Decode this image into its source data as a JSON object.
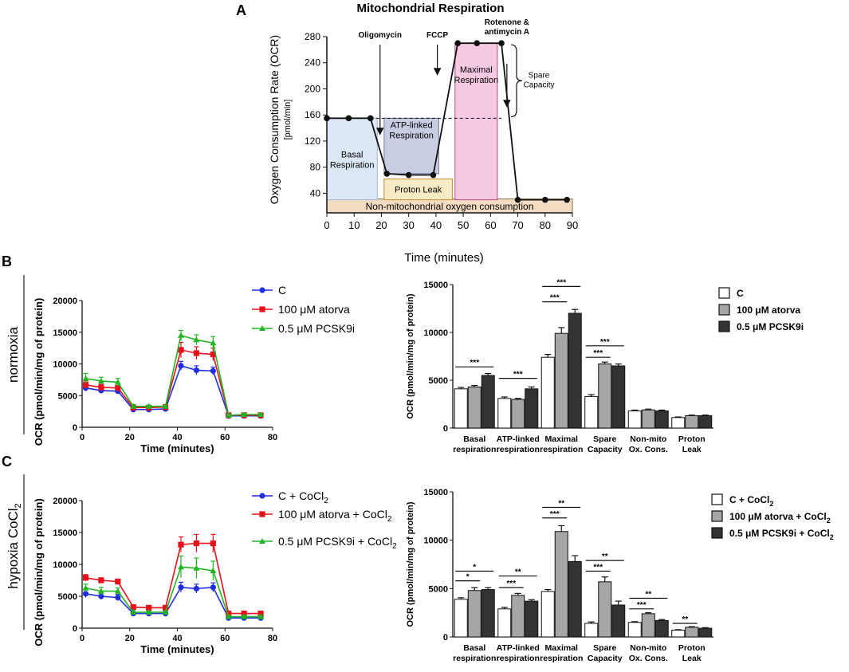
{
  "panel_labels": {
    "A": "A",
    "B": "B",
    "C": "C"
  },
  "row_labels": {
    "B": "normoxia",
    "C_main": "hypoxia CoCl",
    "C_sub": "2"
  },
  "panel_a": {
    "title": "Mitochondrial Respiration",
    "ylabel_line1": "Oxygen Consumption Rate (OCR)",
    "ylabel_line2": "[pmol/min]",
    "xlabel": "Time (minutes)",
    "x_ticks": [
      0,
      10,
      20,
      30,
      40,
      50,
      60,
      70,
      80,
      90
    ],
    "y_ticks": [
      40,
      80,
      120,
      160,
      200,
      240,
      280
    ],
    "xlim": [
      0,
      90
    ],
    "ylim": [
      10,
      280
    ],
    "injections": {
      "oligomycin": "Oligomycin",
      "fccp": "FCCP",
      "rotenone_line1": "Rotenone &",
      "rotenone_line2": "antimycin A"
    },
    "boxes": {
      "basal_line1": "Basal",
      "basal_line2": "Respiration",
      "atp_line1": "ATP-linked",
      "atp_line2": "Respiration",
      "proton_leak": "Proton Leak",
      "maximal_line1": "Maximal",
      "maximal_line2": "Respiration",
      "nonmito": "Non-mitochondrial oxygen consumption",
      "spare_line1": "Spare",
      "spare_line2": "Capacity"
    },
    "trace": {
      "x": [
        0,
        8,
        16,
        22,
        30,
        39,
        48,
        55,
        64,
        70,
        80,
        88
      ],
      "y": [
        155,
        155,
        155,
        70,
        68,
        68,
        270,
        270,
        270,
        30,
        30,
        30
      ]
    },
    "colors": {
      "basal": "#dce8f5",
      "atp": "#c9cde4",
      "proton": "#f7ebc6",
      "maximal": "#f7c9e1",
      "nonmito": "#f2ddc3"
    }
  },
  "legend_line_b": [
    "C",
    "100 μM atorva",
    "0.5 μM PCSK9i"
  ],
  "legend_line_c": {
    "items": [
      "C + CoCl",
      "100 μM atorva + CoCl",
      "0.5 μM PCSK9i + CoCl"
    ],
    "sub": "2"
  },
  "legend_bar_b": [
    "C",
    "100 μM atorva",
    "0.5 μM PCSK9i"
  ],
  "legend_bar_c": {
    "items": [
      "C + CoCl",
      "100 μM atorva + CoCl",
      "0.5 μM PCSK9i + CoCl"
    ],
    "sub": "2"
  },
  "colors": {
    "c": "#1f2de0",
    "atorva": "#e8101a",
    "pcsk9i": "#22b522",
    "bar_c": "#ffffff",
    "bar_atorva": "#a6a6a6",
    "bar_pcsk9i": "#333333"
  },
  "chart_data": [
    {
      "id": "A",
      "type": "line",
      "title": "Mitochondrial Respiration",
      "xlabel": "Time (minutes)",
      "ylabel": "Oxygen Consumption Rate (OCR) [pmol/min]",
      "x": [
        0,
        8,
        16,
        22,
        30,
        39,
        48,
        55,
        64,
        70,
        80,
        88
      ],
      "series": [
        {
          "name": "OCR",
          "values": [
            155,
            155,
            155,
            70,
            68,
            68,
            270,
            270,
            270,
            30,
            30,
            30
          ]
        }
      ],
      "xlim": [
        0,
        90
      ],
      "ylim": [
        10,
        280
      ]
    },
    {
      "id": "B-line",
      "type": "line",
      "title": "",
      "xlabel": "Time (minutes)",
      "ylabel": "OCR (pmol/min/mg of protein)",
      "x_ticks": [
        0,
        20,
        40,
        60,
        80
      ],
      "y_ticks": [
        0,
        5000,
        10000,
        15000,
        20000
      ],
      "xlim": [
        0,
        80
      ],
      "ylim": [
        0,
        20000
      ],
      "x": [
        1.5,
        8,
        15,
        21.5,
        28,
        35,
        41.5,
        48,
        55,
        61.5,
        68,
        75
      ],
      "series": [
        {
          "name": "C",
          "values": [
            6200,
            5800,
            5700,
            2800,
            2800,
            2900,
            9700,
            9000,
            8900,
            1800,
            1800,
            1800
          ],
          "err": [
            500,
            300,
            300,
            200,
            200,
            200,
            700,
            700,
            600,
            150,
            150,
            150
          ]
        },
        {
          "name": "100 μM atorva",
          "values": [
            6700,
            6300,
            6200,
            3100,
            3100,
            3200,
            12200,
            11700,
            11500,
            1900,
            1900,
            1900
          ],
          "err": [
            600,
            500,
            400,
            200,
            200,
            200,
            1200,
            1000,
            1000,
            150,
            150,
            150
          ]
        },
        {
          "name": "0.5 μM PCSK9i",
          "values": [
            7700,
            7300,
            7100,
            3300,
            3300,
            3300,
            14500,
            13800,
            13300,
            1900,
            2000,
            2000
          ],
          "err": [
            800,
            600,
            600,
            300,
            200,
            200,
            800,
            800,
            1000,
            200,
            200,
            200
          ]
        }
      ]
    },
    {
      "id": "B-bar",
      "type": "bar",
      "ylabel": "OCR (pmol/min/mg of protein)",
      "y_ticks": [
        0,
        5000,
        10000,
        15000
      ],
      "ylim": [
        0,
        15000
      ],
      "categories": [
        [
          "Basal",
          "respiration"
        ],
        [
          "ATP-linked",
          "respiration"
        ],
        [
          "Maximal",
          "respiration"
        ],
        [
          "Spare",
          "Capacity"
        ],
        [
          "Non-mito",
          "Ox. Cons."
        ],
        [
          "Proton",
          "Leak"
        ]
      ],
      "series": [
        {
          "name": "C",
          "values": [
            4100,
            3100,
            7400,
            3300,
            1800,
            1100
          ],
          "err": [
            150,
            150,
            300,
            200,
            80,
            60
          ]
        },
        {
          "name": "100 μM atorva",
          "values": [
            4300,
            3000,
            9900,
            6700,
            1900,
            1300
          ],
          "err": [
            150,
            100,
            600,
            200,
            80,
            60
          ]
        },
        {
          "name": "0.5 μM PCSK9i",
          "values": [
            5500,
            4100,
            12000,
            6500,
            1800,
            1300
          ],
          "err": [
            200,
            200,
            400,
            200,
            80,
            60
          ]
        }
      ],
      "significance": [
        {
          "cat": 0,
          "from": 0,
          "to": 2,
          "level": 6400,
          "label": "***"
        },
        {
          "cat": 1,
          "from": 0,
          "to": 2,
          "level": 5200,
          "label": "***"
        },
        {
          "cat": 2,
          "from": 0,
          "to": 1,
          "level": 13200,
          "label": "***"
        },
        {
          "cat": 2,
          "from": 0,
          "to": 2,
          "level": 14800,
          "label": "***"
        },
        {
          "cat": 3,
          "from": 0,
          "to": 1,
          "level": 7400,
          "label": "***"
        },
        {
          "cat": 3,
          "from": 0,
          "to": 2,
          "level": 8600,
          "label": "***"
        }
      ]
    },
    {
      "id": "C-line",
      "type": "line",
      "title": "",
      "xlabel": "Time (minutes)",
      "ylabel": "OCR (pmol/min/mg of protein)",
      "x_ticks": [
        0,
        20,
        40,
        60,
        80
      ],
      "y_ticks": [
        0,
        5000,
        10000,
        15000,
        20000
      ],
      "xlim": [
        0,
        80
      ],
      "ylim": [
        0,
        20000
      ],
      "x": [
        1.5,
        8,
        15,
        21.5,
        28,
        35,
        41.5,
        48,
        55,
        61.5,
        68,
        75
      ],
      "series": [
        {
          "name": "C + CoCl2",
          "values": [
            5400,
            5000,
            4800,
            2300,
            2300,
            2300,
            6400,
            6200,
            6400,
            1600,
            1600,
            1600
          ],
          "err": [
            600,
            500,
            500,
            200,
            200,
            200,
            800,
            700,
            700,
            150,
            150,
            150
          ]
        },
        {
          "name": "100 μM atorva + CoCl2",
          "values": [
            7900,
            7500,
            7300,
            3300,
            3200,
            3200,
            13100,
            13300,
            13300,
            2300,
            2300,
            2300
          ],
          "err": [
            500,
            400,
            400,
            200,
            200,
            200,
            1200,
            1400,
            1400,
            200,
            200,
            200
          ]
        },
        {
          "name": "0.5 μM PCSK9i + CoCl2",
          "values": [
            6300,
            5800,
            5800,
            2500,
            2500,
            2500,
            9600,
            9400,
            9000,
            1800,
            1800,
            1800
          ],
          "err": [
            600,
            600,
            500,
            300,
            200,
            200,
            1700,
            1600,
            1500,
            200,
            200,
            200
          ]
        }
      ]
    },
    {
      "id": "C-bar",
      "type": "bar",
      "ylabel": "OCR (pmol/min/mg of protein)",
      "y_ticks": [
        0,
        5000,
        10000,
        15000
      ],
      "ylim": [
        0,
        15000
      ],
      "categories": [
        [
          "Basal",
          "respiration"
        ],
        [
          "ATP-linked",
          "respiration"
        ],
        [
          "Maximal",
          "respiration"
        ],
        [
          "Spare",
          "Capacity"
        ],
        [
          "Non-mito",
          "Ox. Cons."
        ],
        [
          "Proton",
          "Leak"
        ]
      ],
      "series": [
        {
          "name": "C + CoCl2",
          "values": [
            3900,
            2900,
            4700,
            1400,
            1500,
            700
          ],
          "err": [
            150,
            150,
            200,
            150,
            80,
            50
          ]
        },
        {
          "name": "100 μM atorva + CoCl2",
          "values": [
            4800,
            4300,
            10900,
            5700,
            2400,
            1000
          ],
          "err": [
            300,
            200,
            600,
            500,
            100,
            60
          ]
        },
        {
          "name": "0.5 μM PCSK9i + CoCl2",
          "values": [
            4900,
            3700,
            7800,
            3300,
            1700,
            900
          ],
          "err": [
            200,
            150,
            600,
            400,
            100,
            60
          ]
        }
      ],
      "significance": [
        {
          "cat": 0,
          "from": 0,
          "to": 1,
          "level": 5800,
          "label": "*"
        },
        {
          "cat": 0,
          "from": 0,
          "to": 2,
          "level": 6800,
          "label": "*"
        },
        {
          "cat": 1,
          "from": 0,
          "to": 1,
          "level": 5100,
          "label": "***"
        },
        {
          "cat": 1,
          "from": 0,
          "to": 2,
          "level": 6300,
          "label": "**"
        },
        {
          "cat": 2,
          "from": 0,
          "to": 1,
          "level": 12300,
          "label": "***"
        },
        {
          "cat": 2,
          "from": 0,
          "to": 2,
          "level": 13400,
          "label": "**"
        },
        {
          "cat": 3,
          "from": 0,
          "to": 1,
          "level": 6800,
          "label": "***"
        },
        {
          "cat": 3,
          "from": 0,
          "to": 2,
          "level": 7900,
          "label": "**"
        },
        {
          "cat": 4,
          "from": 0,
          "to": 1,
          "level": 2900,
          "label": "***"
        },
        {
          "cat": 4,
          "from": 0,
          "to": 2,
          "level": 4000,
          "label": "**"
        },
        {
          "cat": 5,
          "from": 0,
          "to": 1,
          "level": 1400,
          "label": "**"
        }
      ]
    }
  ]
}
